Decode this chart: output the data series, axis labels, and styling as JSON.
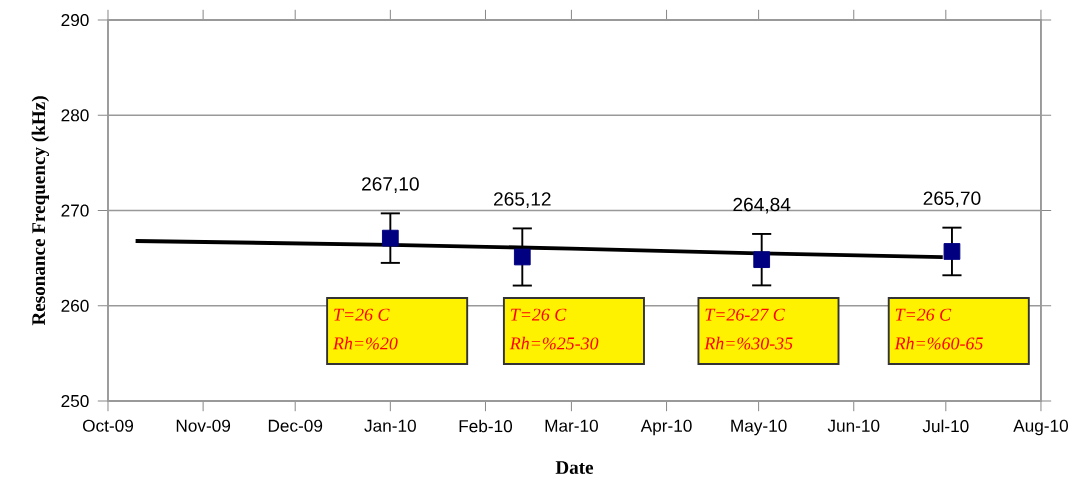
{
  "chart_data": {
    "type": "scatter",
    "xlabel": "Date",
    "ylabel": "Resonance Frequency (kHz)",
    "x": [
      "2010-01-01",
      "2010-02-13",
      "2010-05-02",
      "2010-07-03"
    ],
    "xlim": [
      "2009-10-01",
      "2010-08-01"
    ],
    "xticks": [
      {
        "value": "2009-10-01",
        "label": "Oct-09"
      },
      {
        "value": "2009-11-01",
        "label": "Nov-09"
      },
      {
        "value": "2009-12-01",
        "label": "Dec-09"
      },
      {
        "value": "2010-01-01",
        "label": "Jan-10"
      },
      {
        "value": "2010-02-01",
        "label": "Feb-10"
      },
      {
        "value": "2010-03-01",
        "label": "Mar-10"
      },
      {
        "value": "2010-04-01",
        "label": "Apr-10"
      },
      {
        "value": "2010-05-01",
        "label": "May-10"
      },
      {
        "value": "2010-06-01",
        "label": "Jun-10"
      },
      {
        "value": "2010-07-01",
        "label": "Jul-10"
      },
      {
        "value": "2010-08-01",
        "label": "Aug-10"
      }
    ],
    "ylim": [
      250,
      290
    ],
    "yticks": [
      250,
      260,
      270,
      280,
      290
    ],
    "grid": "y",
    "series": [
      {
        "marker": "square",
        "color": "#000080",
        "values": [
          267.1,
          265.12,
          264.84,
          265.7
        ],
        "errors": [
          2.6,
          3.0,
          2.7,
          2.5
        ],
        "value_labels": [
          "267,10",
          "265,12",
          "264,84",
          "265,70"
        ]
      },
      {
        "type": "line",
        "marker": "none",
        "color": "#000000",
        "x": [
          "2009-10-10",
          "2010-01-01",
          "2010-03-01",
          "2010-05-01",
          "2010-06-30"
        ],
        "values": [
          266.8,
          266.4,
          266.0,
          265.5,
          265.1
        ]
      }
    ],
    "annotations": [
      "*T=26 C*",
      "*Rh=%20*",
      "*T=26 C*",
      "*Rh=%25-30*",
      "*T=26-27 C*",
      "*Rh=%30-35*",
      "*T=26 C*",
      "*Rh=%60-65*"
    ]
  }
}
